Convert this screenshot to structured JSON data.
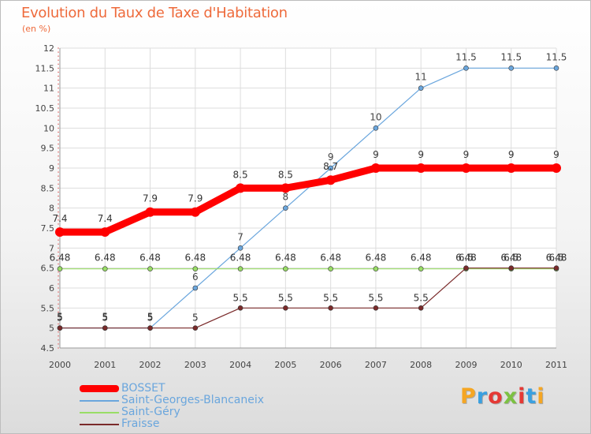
{
  "header": {
    "title": "Evolution du Taux de Taxe d'Habitation",
    "subtitle": "(en %)"
  },
  "chart_data": {
    "type": "line",
    "x": [
      "2000",
      "2001",
      "2002",
      "2003",
      "2004",
      "2005",
      "2006",
      "2007",
      "2008",
      "2009",
      "2010",
      "2011"
    ],
    "ylim": [
      4.5,
      12
    ],
    "yticks": [
      "4.5",
      "5",
      "5.5",
      "6",
      "6.5",
      "7",
      "7.5",
      "8",
      "8.5",
      "9",
      "9.5",
      "10",
      "10.5",
      "11",
      "11.5",
      "12"
    ],
    "grid": true,
    "legend_position": "bottom-left",
    "series": [
      {
        "name": "BOSSET",
        "color": "#ff0000",
        "values": [
          7.4,
          7.4,
          7.9,
          7.9,
          8.5,
          8.5,
          8.7,
          9,
          9,
          9,
          9,
          9
        ],
        "labels": [
          "7.4",
          "7.4",
          "7.9",
          "7.9",
          "8.5",
          "8.5",
          "8.7",
          "9",
          "9",
          "9",
          "9",
          "9"
        ]
      },
      {
        "name": "Saint-Georges-Blancaneix",
        "color": "#6aa6dd",
        "values": [
          5,
          5,
          5,
          6,
          7,
          8,
          9,
          10,
          11,
          11.5,
          11.5,
          11.5
        ],
        "labels": [
          "5",
          "5",
          "5",
          "6",
          "7",
          "8",
          "9",
          "10",
          "11",
          "11.5",
          "11.5",
          "11.5"
        ]
      },
      {
        "name": "Saint-Géry",
        "color": "#99dd66",
        "values": [
          6.48,
          6.48,
          6.48,
          6.48,
          6.48,
          6.48,
          6.48,
          6.48,
          6.48,
          6.48,
          6.48,
          6.48
        ],
        "labels": [
          "6.48",
          "6.48",
          "6.48",
          "6.48",
          "6.48",
          "6.48",
          "6.48",
          "6.48",
          "6.48",
          "6.48",
          "6.48",
          "6.48"
        ]
      },
      {
        "name": "Fraisse",
        "color": "#7a2a2a",
        "values": [
          5,
          5,
          5,
          5,
          5.5,
          5.5,
          5.5,
          5.5,
          5.5,
          6.5,
          6.5,
          6.5
        ],
        "labels": [
          "5",
          "5",
          "5",
          "5",
          "5.5",
          "5.5",
          "5.5",
          "5.5",
          "5.5",
          "6.5",
          "6.5",
          "6.5"
        ]
      }
    ]
  },
  "logo": {
    "text": "Proxiti",
    "letters": [
      "P",
      "r",
      "o",
      "x",
      "i",
      "t",
      "i"
    ],
    "colors": [
      "#f5a623",
      "#3aa0e0",
      "#e53935",
      "#7cc142",
      "#e53935",
      "#3aa0e0",
      "#f5a623"
    ]
  }
}
